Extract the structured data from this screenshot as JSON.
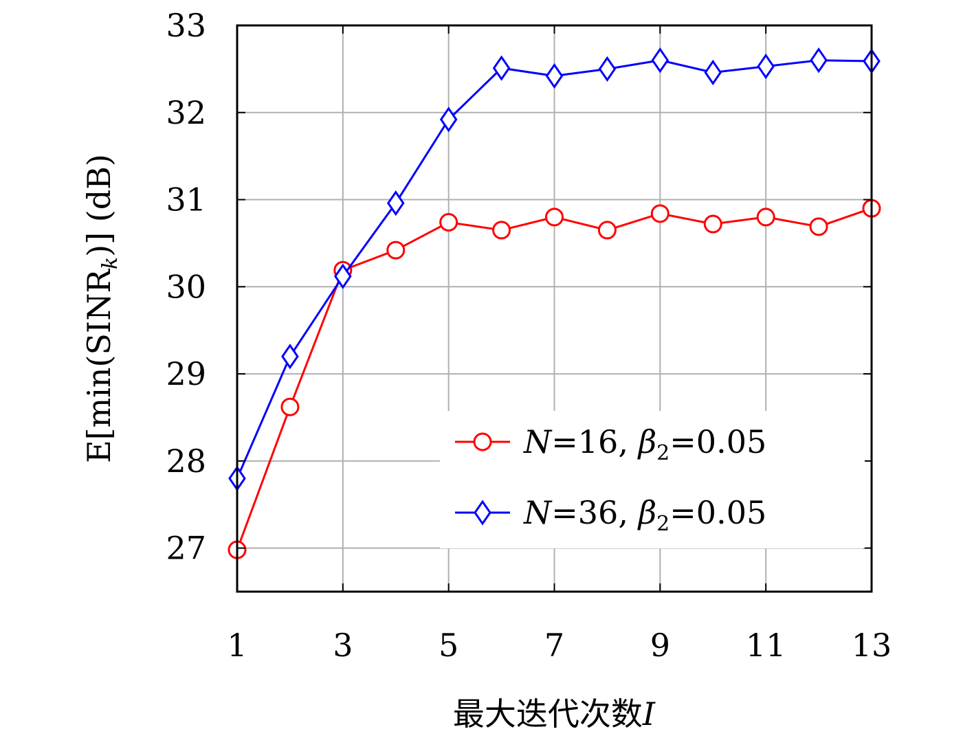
{
  "chart_data": {
    "type": "line",
    "xlabel": "最大迭代次数I",
    "ylabel": "E[min(SINR_k)] (dB)",
    "xlim": [
      1,
      13
    ],
    "ylim": [
      26.5,
      33
    ],
    "xticks": [
      1,
      3,
      5,
      7,
      9,
      11,
      13
    ],
    "yticks": [
      27,
      28,
      29,
      30,
      31,
      32,
      33
    ],
    "grid": true,
    "legend_position": "lower-right",
    "x": [
      1,
      2,
      3,
      4,
      5,
      6,
      7,
      8,
      9,
      10,
      11,
      12,
      13
    ],
    "series": [
      {
        "name": "N=16, β2=0.05",
        "color": "#ff0000",
        "marker": "circle",
        "values": [
          26.98,
          28.62,
          30.19,
          30.42,
          30.74,
          30.65,
          30.8,
          30.65,
          30.84,
          30.72,
          30.8,
          30.69,
          30.9
        ]
      },
      {
        "name": "N=36, β2=0.05",
        "color": "#0000ff",
        "marker": "diamond",
        "values": [
          27.8,
          29.2,
          30.12,
          30.96,
          31.92,
          32.51,
          32.42,
          32.5,
          32.6,
          32.46,
          32.53,
          32.6,
          32.59
        ]
      }
    ]
  }
}
